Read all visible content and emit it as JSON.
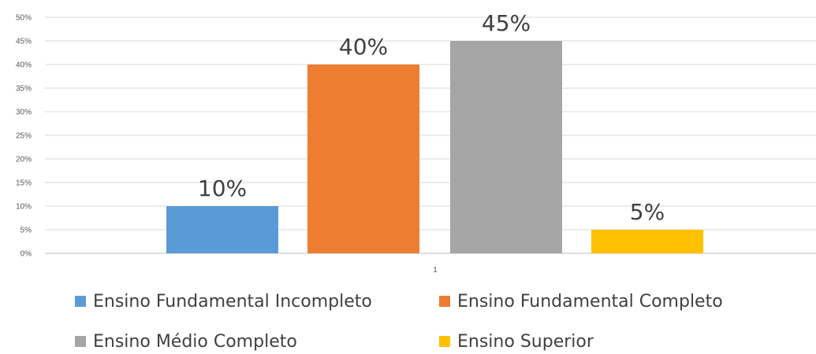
{
  "chart_data": {
    "type": "bar",
    "categories": [
      "1"
    ],
    "series": [
      {
        "name": "Ensino Fundamental Incompleto",
        "values": [
          0.1
        ],
        "label": "10%",
        "color": "#5B9BD5"
      },
      {
        "name": "Ensino Fundamental Completo",
        "values": [
          0.4
        ],
        "label": "40%",
        "color": "#ED7D31"
      },
      {
        "name": "Ensino Médio Completo",
        "values": [
          0.45
        ],
        "label": "45%",
        "color": "#A5A5A5"
      },
      {
        "name": "Ensino Superior",
        "values": [
          0.05
        ],
        "label": "5%",
        "color": "#FFC000"
      }
    ],
    "yticks": [
      "0%",
      "5%",
      "10%",
      "15%",
      "20%",
      "25%",
      "30%",
      "35%",
      "40%",
      "45%",
      "50%"
    ],
    "ylim": [
      0,
      0.5
    ],
    "grid": true,
    "legend_position": "bottom",
    "title": "",
    "xlabel": "",
    "ylabel": ""
  }
}
